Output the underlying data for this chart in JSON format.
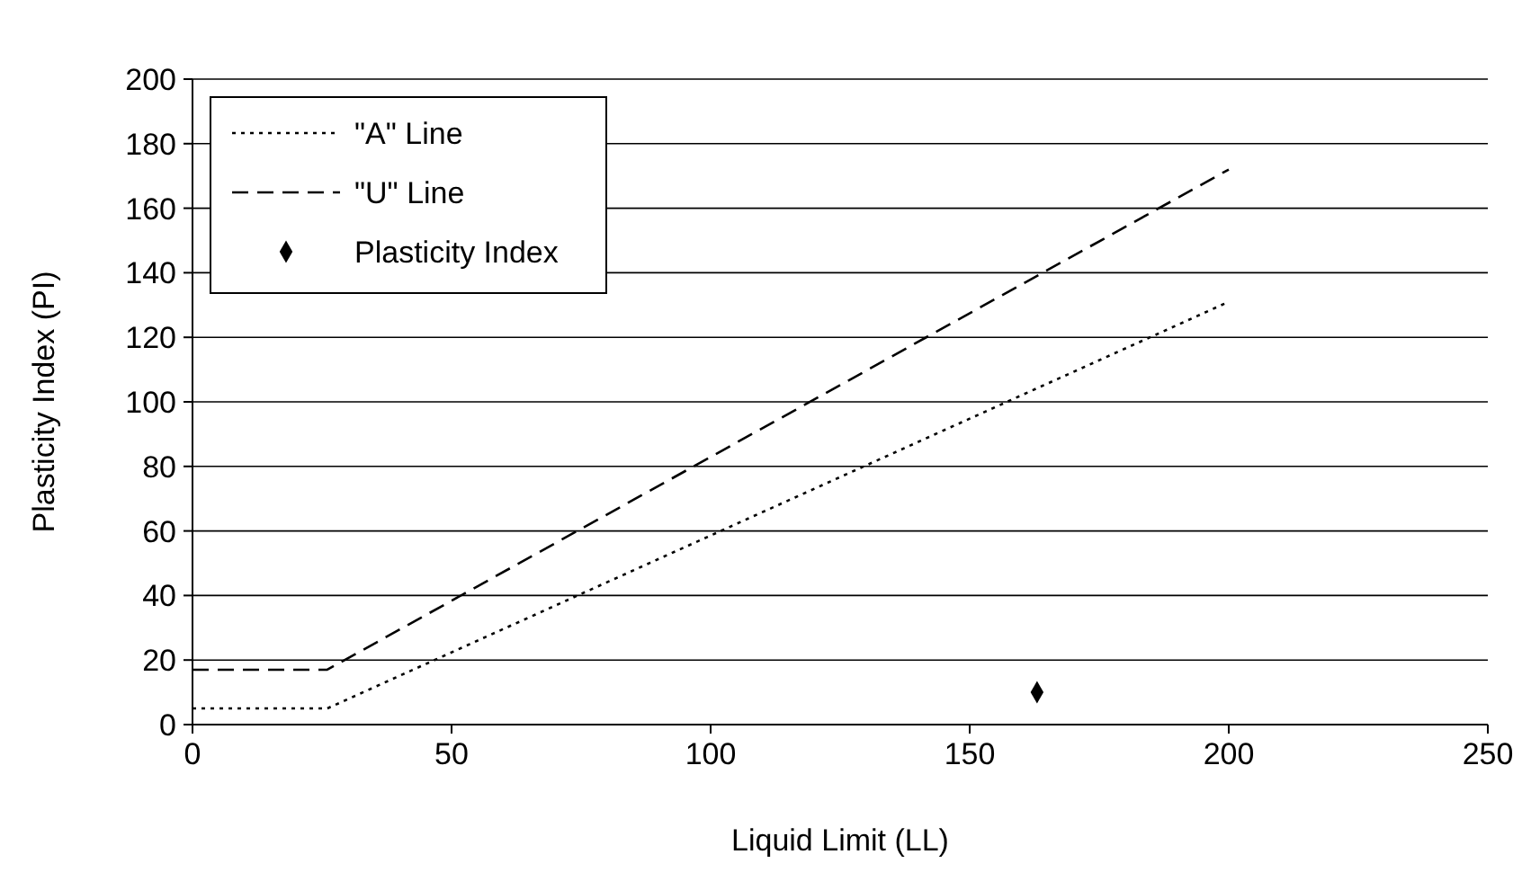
{
  "chart_data": {
    "type": "line",
    "xlabel": "Liquid Limit (LL)",
    "ylabel": "Plasticity Index (PI)",
    "xlim": [
      0,
      250
    ],
    "xticks": [
      0,
      50,
      100,
      150,
      200,
      250
    ],
    "ylim": [
      0,
      200
    ],
    "yticks": [
      0,
      20,
      40,
      60,
      80,
      100,
      120,
      140,
      160,
      180,
      200
    ],
    "grid": "y",
    "legend": "top left",
    "series": [
      {
        "name": "\"A\" Line",
        "color": "#000000",
        "x": [
          0,
          26,
          200
        ],
        "values": [
          5,
          5,
          131
        ],
        "line_style": "dotted",
        "marker": "none"
      },
      {
        "name": "\"U\" Line",
        "color": "#000000",
        "x": [
          0,
          26,
          200
        ],
        "values": [
          17,
          17,
          172
        ],
        "line_style": "dashed",
        "marker": "none"
      },
      {
        "name": "Plasticity Index",
        "type": "scatter",
        "color": "#000000",
        "x": [
          163
        ],
        "values": [
          10
        ],
        "marker": "diamond"
      }
    ]
  }
}
